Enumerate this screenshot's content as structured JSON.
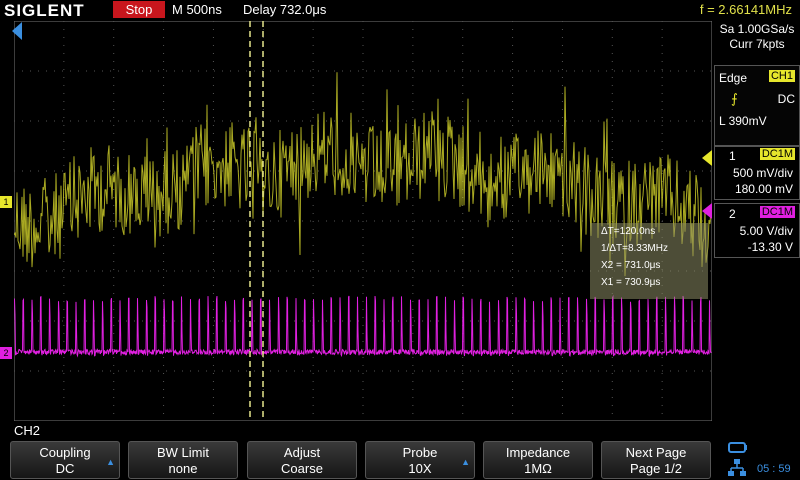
{
  "topbar": {
    "brand": "SIGLENT",
    "run_state": "Stop",
    "timebase": "M 500ns",
    "delay": "Delay 732.0μs",
    "frequency": "f = 2.66141MHz"
  },
  "acquisition": {
    "sample_rate": "Sa 1.00GSa/s",
    "memory": "Curr 7kpts"
  },
  "trigger": {
    "type": "Edge",
    "source": "CH1",
    "coupling": "DC",
    "slope_icon": "rising-edge-icon",
    "level": "L  390mV"
  },
  "ch1": {
    "number": "1",
    "coupling": "DC1M",
    "vdiv": "500 mV/div",
    "offset": "180.00 mV",
    "marker": "1",
    "color": "#e6e62c"
  },
  "ch2": {
    "number": "2",
    "coupling": "DC1M",
    "vdiv": "5.00 V/div",
    "offset": "-13.30 V",
    "marker": "2",
    "color": "#e020e0"
  },
  "cursors": {
    "delta_t": "ΔT=120.0ns",
    "inv_delta_t": "1/ΔT=8.33MHz",
    "x2": "X2 = 731.0μs",
    "x1": "X1 = 730.9μs"
  },
  "menu": {
    "channel": "CH2",
    "keys": [
      {
        "title": "Coupling",
        "value": "DC",
        "arrow": true
      },
      {
        "title": "BW Limit",
        "value": "none",
        "arrow": false
      },
      {
        "title": "Adjust",
        "value": "Coarse",
        "arrow": false
      },
      {
        "title": "Probe",
        "value": "10X",
        "arrow": true
      },
      {
        "title": "Impedance",
        "value": "1MΩ",
        "arrow": false
      },
      {
        "title": "Next Page",
        "value": "Page 1/2",
        "arrow": false
      }
    ]
  },
  "status": {
    "clock": "05 : 59",
    "usb_icon": "usb-icon",
    "network_icon": "network-icon"
  }
}
